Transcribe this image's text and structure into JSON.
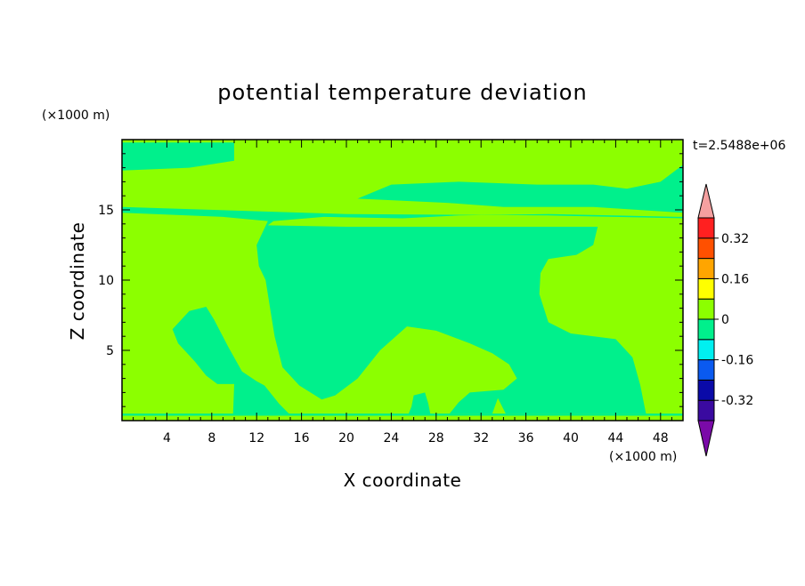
{
  "chart_data": {
    "type": "heatmap",
    "title": "potential temperature deviation",
    "xlabel": "X coordinate",
    "ylabel": "Z coordinate",
    "x_unit": "(×1000 m)",
    "y_unit": "(×1000 m)",
    "time_label": "t=2.5488e+06",
    "xlim": [
      0,
      50
    ],
    "ylim": [
      0,
      20
    ],
    "x_ticks": [
      4,
      8,
      12,
      16,
      20,
      24,
      28,
      32,
      36,
      40,
      44,
      48
    ],
    "y_ticks": [
      5,
      10,
      15
    ],
    "x_tick_labels": [
      "4",
      "8",
      "12",
      "16",
      "20",
      "24",
      "28",
      "32",
      "36",
      "40",
      "44",
      "48"
    ],
    "y_tick_labels": [
      "5",
      "10",
      "15"
    ],
    "levels": [
      -0.4,
      -0.32,
      -0.24,
      -0.16,
      -0.08,
      0,
      0.08,
      0.16,
      0.24,
      0.32,
      0.4
    ],
    "colorbar_labels": [
      "0.32",
      "0.16",
      "0",
      "-0.16",
      "-0.32"
    ],
    "colorbar_label_values": [
      0.32,
      0.16,
      0,
      -0.16,
      -0.32
    ],
    "colors": {
      "below": "#7a0aa8",
      "bins": [
        "#3a0aa0",
        "#0a0aa8",
        "#0a5af0",
        "#00f0f0",
        "#00f08c",
        "#8cff00",
        "#ffff00",
        "#ffa500",
        "#ff5000",
        "#ff2020"
      ],
      "above": "#f5a0a0"
    },
    "field_regions": {
      "background_value": 0.04,
      "green_value": -0.04,
      "green_region_outlines": [
        [
          [
            0,
            19.8
          ],
          [
            10,
            19.8
          ],
          [
            10,
            18.5
          ],
          [
            6,
            18
          ],
          [
            0,
            17.8
          ]
        ],
        [
          [
            30,
            19.8
          ],
          [
            50,
            19.8
          ],
          [
            50,
            18.2
          ],
          [
            48,
            17
          ],
          [
            45,
            16.5
          ],
          [
            42,
            16.8
          ],
          [
            37,
            16.8
          ],
          [
            30,
            17
          ],
          [
            24,
            16.8
          ],
          [
            21,
            15.8
          ],
          [
            29,
            15.5
          ],
          [
            34,
            15.2
          ],
          [
            42,
            15.2
          ],
          [
            50,
            14.8
          ],
          [
            50,
            14.4
          ],
          [
            38,
            14.6
          ],
          [
            20,
            14.7
          ],
          [
            0,
            15.2
          ],
          [
            0,
            14.8
          ],
          [
            9,
            14.5
          ],
          [
            13,
            14.2
          ],
          [
            12,
            12.5
          ],
          [
            12.2,
            11
          ],
          [
            12.8,
            10
          ],
          [
            13.2,
            8
          ],
          [
            13.6,
            6
          ],
          [
            14.3,
            3.8
          ],
          [
            15.8,
            2.5
          ],
          [
            17.8,
            1.5
          ],
          [
            19,
            1.8
          ],
          [
            21,
            3
          ],
          [
            23,
            5
          ],
          [
            25.4,
            6.7
          ],
          [
            28,
            6.4
          ],
          [
            31,
            5.5
          ],
          [
            33,
            4.8
          ],
          [
            34.5,
            4
          ],
          [
            35.2,
            3
          ],
          [
            34,
            2.2
          ],
          [
            31,
            2
          ],
          [
            30,
            1.3
          ],
          [
            29.2,
            0.5
          ],
          [
            33,
            0.5
          ],
          [
            33.5,
            1.6
          ],
          [
            34.2,
            0.5
          ],
          [
            46.7,
            0.5
          ],
          [
            46.2,
            2.5
          ],
          [
            45.5,
            4.5
          ],
          [
            44,
            5.8
          ],
          [
            40,
            6.2
          ],
          [
            38,
            7
          ],
          [
            37.2,
            9
          ],
          [
            37.3,
            10.5
          ],
          [
            38,
            11.5
          ],
          [
            40.5,
            11.8
          ],
          [
            42,
            12.5
          ],
          [
            42.4,
            13.8
          ],
          [
            20,
            13.8
          ],
          [
            13,
            13.9
          ],
          [
            13.5,
            14.2
          ],
          [
            18,
            14.5
          ],
          [
            25,
            14.4
          ],
          [
            30,
            14.6
          ],
          [
            38,
            14.7
          ],
          [
            50,
            14.5
          ],
          [
            50,
            19.8
          ]
        ],
        [
          [
            4.5,
            6.5
          ],
          [
            6,
            7.8
          ],
          [
            7.5,
            8.1
          ],
          [
            8.2,
            7.2
          ],
          [
            9.5,
            5.2
          ],
          [
            10.7,
            3.5
          ],
          [
            12,
            2.8
          ],
          [
            12.7,
            2.5
          ],
          [
            14,
            1.2
          ],
          [
            15,
            0.4
          ],
          [
            9.9,
            0.4
          ],
          [
            10,
            2.6
          ],
          [
            8.5,
            2.6
          ],
          [
            7.5,
            3.2
          ],
          [
            6.5,
            4.2
          ],
          [
            5,
            5.5
          ]
        ],
        [
          [
            26,
            1.8
          ],
          [
            27,
            2
          ],
          [
            27.3,
            1.2
          ],
          [
            27.5,
            0.4
          ],
          [
            25.5,
            0.4
          ],
          [
            25.8,
            1
          ]
        ],
        [
          [
            0,
            0.35
          ],
          [
            50,
            0.35
          ],
          [
            50,
            0.5
          ],
          [
            0,
            0.5
          ]
        ]
      ]
    }
  }
}
